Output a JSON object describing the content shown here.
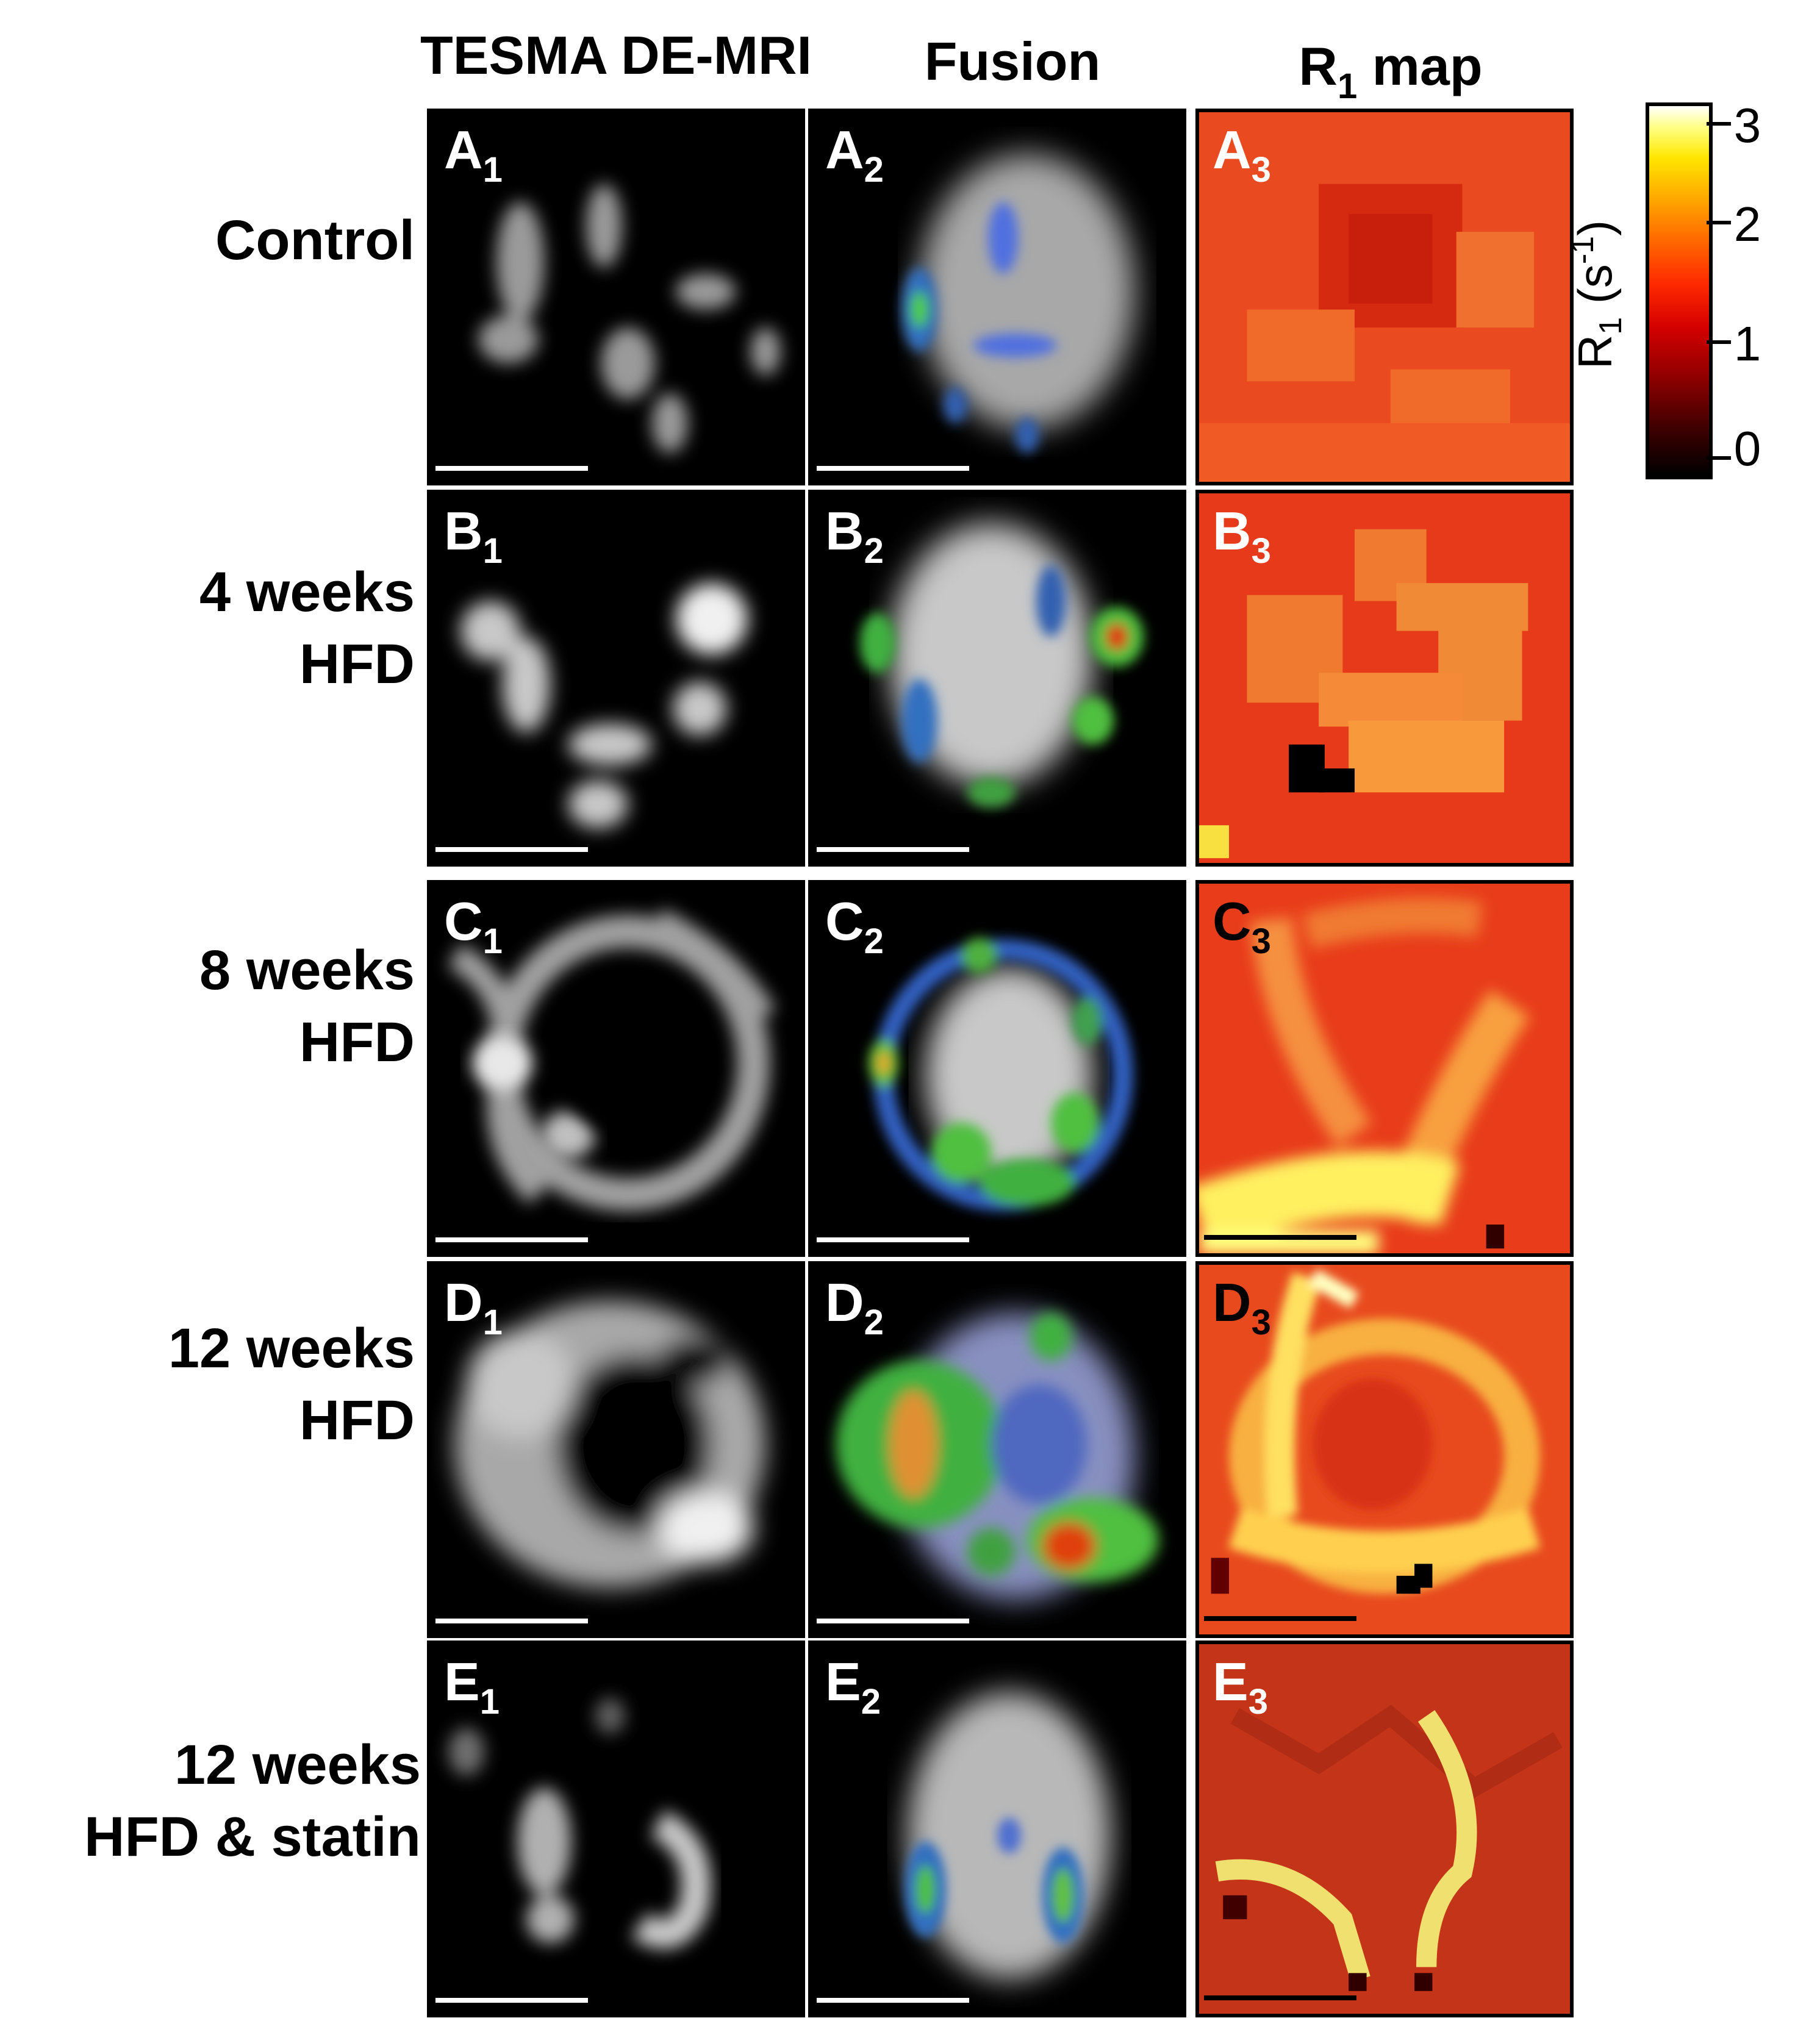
{
  "column_headers": {
    "tesma": "TESMA DE-MRI",
    "fusion": "Fusion",
    "r1_main": "R",
    "r1_sub": "1",
    "r1_rest": " map"
  },
  "rows": [
    {
      "label_lines": [
        "Control"
      ],
      "letter": "A"
    },
    {
      "label_lines": [
        "4 weeks",
        "HFD"
      ],
      "letter": "B"
    },
    {
      "label_lines": [
        "8 weeks",
        "HFD"
      ],
      "letter": "C"
    },
    {
      "label_lines": [
        "12 weeks",
        "HFD"
      ],
      "letter": "D"
    },
    {
      "label_lines": [
        "12 weeks",
        "HFD & statin"
      ],
      "letter": "E"
    }
  ],
  "panel_labels": {
    "A1": "A",
    "A2": "A",
    "A3": "A",
    "B1": "B",
    "B2": "B",
    "B3": "B",
    "C1": "C",
    "C2": "C",
    "C3": "C",
    "D1": "D",
    "D2": "D",
    "D3": "D",
    "E1": "E",
    "E2": "E",
    "E3": "E",
    "sub1": "1",
    "sub2": "2",
    "sub3": "3"
  },
  "colorbar": {
    "ticks": [
      "3",
      "2",
      "1",
      "0"
    ],
    "title_main": "R",
    "title_sub": "1",
    "title_unit_open": " (s",
    "title_sup": "-1",
    "title_unit_close": ")",
    "colors": {
      "low": "#000000",
      "mid": "#e01000",
      "high": "#ffffff"
    }
  }
}
